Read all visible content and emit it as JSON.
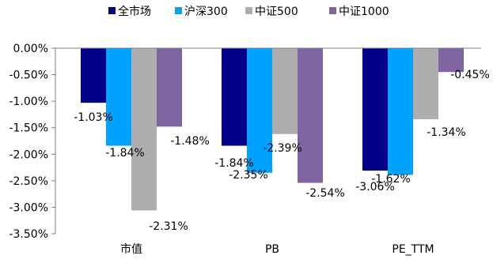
{
  "chart_data": {
    "type": "bar",
    "categories": [
      "市值",
      "PB",
      "PE_TTM"
    ],
    "series": [
      {
        "name": "全市场",
        "color": "#00008B",
        "values": [
          -1.03,
          -1.84,
          -2.31
        ],
        "labels": [
          "-1.03%",
          "-1.84%",
          "-2.31%"
        ]
      },
      {
        "name": "沪深300",
        "color": "#00A2FF",
        "values": [
          -1.84,
          -2.35,
          -2.39
        ],
        "labels": [
          "-1.84%",
          "-2.35%",
          "-2.39%"
        ]
      },
      {
        "name": "中证500",
        "color": "#AEAEAE",
        "values": [
          -3.06,
          -1.62,
          -1.34
        ],
        "labels": [
          "-3.06%",
          "-1.62%",
          "-1.34%"
        ]
      },
      {
        "name": "中证1000",
        "color": "#8064A2",
        "values": [
          -1.48,
          -2.54,
          -0.45
        ],
        "labels": [
          "-1.48%",
          "-2.54%",
          "-0.45%"
        ]
      }
    ],
    "ylim": [
      -3.5,
      0
    ],
    "yticks": [
      0,
      -0.5,
      -1.0,
      -1.5,
      -2.0,
      -2.5,
      -3.0,
      -3.5
    ],
    "ytick_labels": [
      "0.00%",
      "-0.50%",
      "-1.00%",
      "-1.50%",
      "-2.00%",
      "-2.50%",
      "-3.00%",
      "-3.50%"
    ],
    "legend_position": "top-center",
    "grid": false
  }
}
